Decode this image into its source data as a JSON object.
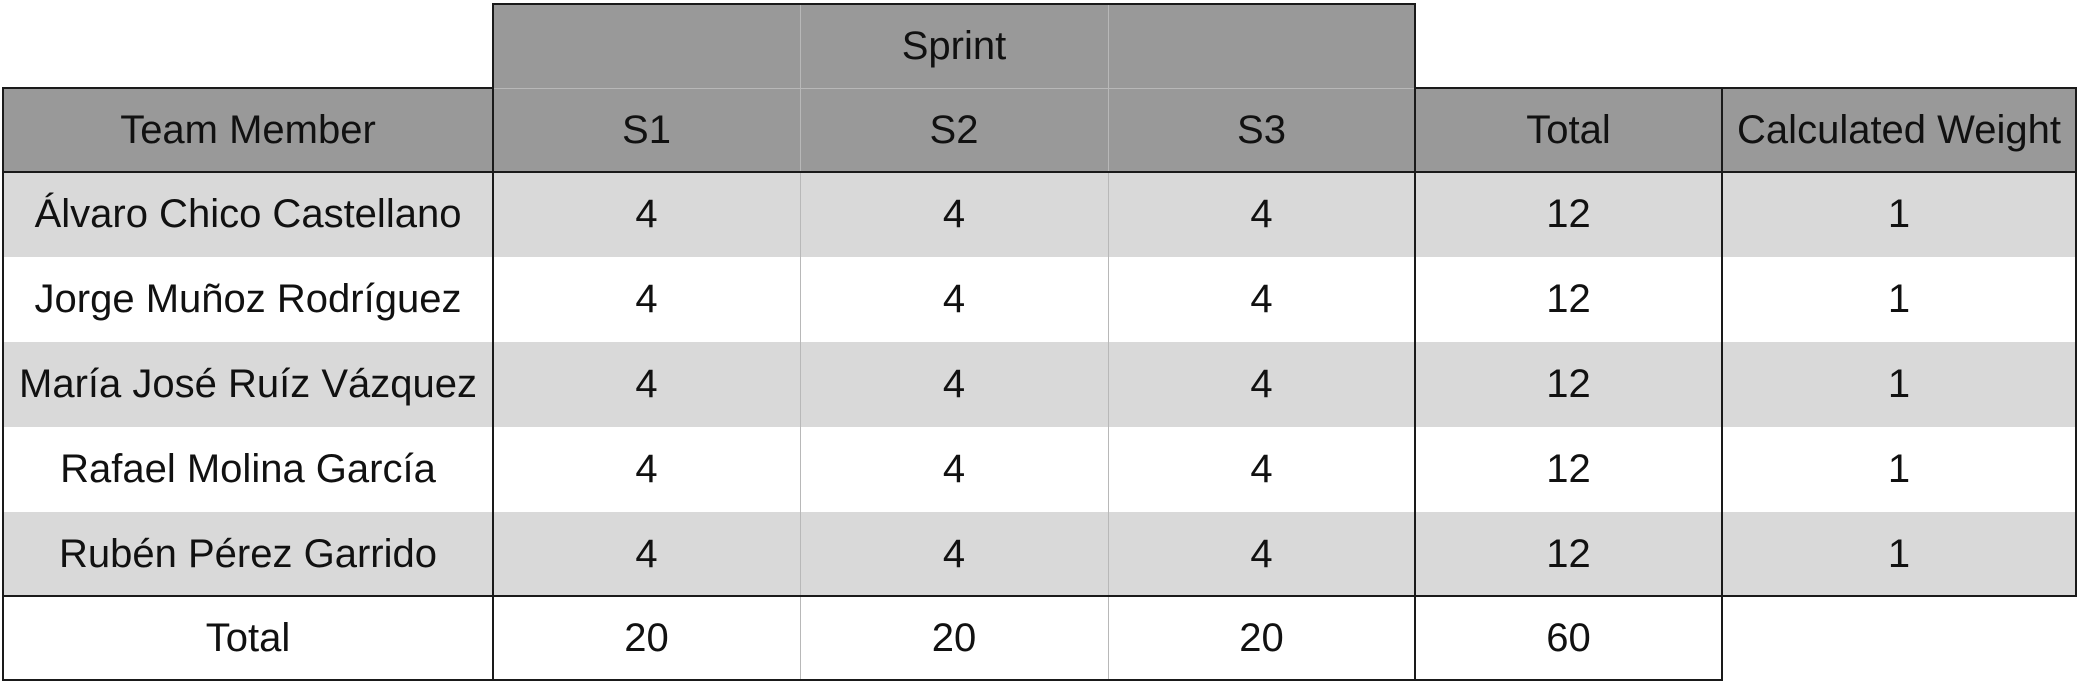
{
  "table": {
    "group_header": "Sprint",
    "headers": {
      "member": "Team Member",
      "s1": "S1",
      "s2": "S2",
      "s3": "S3",
      "total": "Total",
      "weight": "Calculated Weight"
    },
    "rows": [
      {
        "name": "Álvaro Chico Castellano",
        "s1": "4",
        "s2": "4",
        "s3": "4",
        "total": "12",
        "weight": "1"
      },
      {
        "name": "Jorge Muñoz Rodríguez",
        "s1": "4",
        "s2": "4",
        "s3": "4",
        "total": "12",
        "weight": "1"
      },
      {
        "name": "María José Ruíz Vázquez",
        "s1": "4",
        "s2": "4",
        "s3": "4",
        "total": "12",
        "weight": "1"
      },
      {
        "name": "Rafael Molina García",
        "s1": "4",
        "s2": "4",
        "s3": "4",
        "total": "12",
        "weight": "1"
      },
      {
        "name": "Rubén Pérez Garrido",
        "s1": "4",
        "s2": "4",
        "s3": "4",
        "total": "12",
        "weight": "1"
      }
    ],
    "footer": {
      "label": "Total",
      "s1": "20",
      "s2": "20",
      "s3": "20",
      "total": "60"
    }
  }
}
